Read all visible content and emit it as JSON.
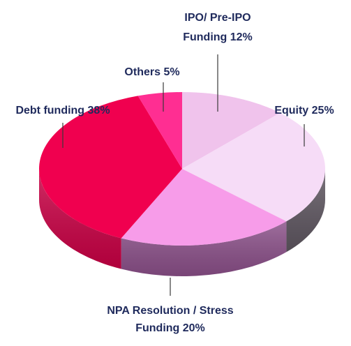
{
  "chart_data": {
    "type": "pie",
    "style": "3d",
    "title": "",
    "slices": [
      {
        "name": "IPO/ Pre-IPO Funding",
        "value": 12,
        "label_lines": [
          "IPO/ Pre-IPO",
          "Funding 12%"
        ],
        "color": "#f0c3ec",
        "side_color": "#c792c0"
      },
      {
        "name": "Equity",
        "value": 25,
        "label_lines": [
          "Equity 25%"
        ],
        "color": "#f6dcf7",
        "side_color": "#5e5660"
      },
      {
        "name": "NPA Resolution / Stress Funding",
        "value": 20,
        "label_lines": [
          "NPA Resolution / Stress",
          "Funding 20%"
        ],
        "color": "#f79ce9",
        "side_color": "#8a4f88"
      },
      {
        "name": "Debt funding",
        "value": 38,
        "label_lines": [
          "Debt funding 38%"
        ],
        "color": "#f0004f",
        "side_color": "#c80044"
      },
      {
        "name": "Others",
        "value": 5,
        "label_lines": [
          "Others 5%"
        ],
        "color": "#ff2e92",
        "side_color": "#d11d74"
      }
    ],
    "label_color": "#1f2a5c"
  }
}
